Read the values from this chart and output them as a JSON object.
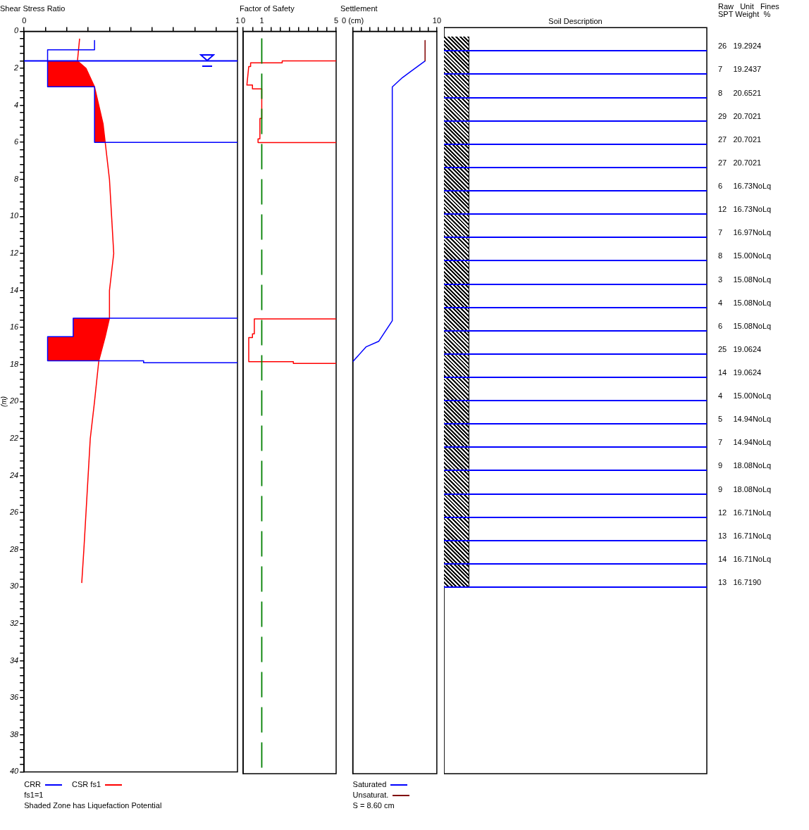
{
  "chart_data": [
    {
      "type": "line",
      "title": "Shear Stress Ratio",
      "ylabel": "(m)",
      "orientation": "horizontal",
      "legend": "bottom",
      "line_style": "solid",
      "marker": "none",
      "grid": false,
      "xlim": [
        0,
        1
      ],
      "xticks": [
        0,
        {
          "value": 0.1,
          "label": null
        },
        {
          "value": 0.2,
          "label": null
        },
        {
          "value": 0.3,
          "label": null
        },
        {
          "value": 0.4,
          "label": null
        },
        {
          "value": 0.5,
          "label": null
        },
        {
          "value": 0.6,
          "label": null
        },
        {
          "value": 0.7,
          "label": null
        },
        {
          "value": 0.8,
          "label": null
        },
        {
          "value": 0.9,
          "label": null
        },
        1
      ],
      "ylim": [
        40,
        0
      ],
      "yticks": [
        0,
        {
          "value": 0.4,
          "label": null
        },
        {
          "value": 0.8,
          "label": null
        },
        {
          "value": 1.2,
          "label": null
        },
        {
          "value": 1.6,
          "label": null
        },
        2,
        {
          "value": 2.4,
          "label": null
        },
        {
          "value": 2.8,
          "label": null
        },
        {
          "value": 3.2,
          "label": null
        },
        {
          "value": 3.6,
          "label": null
        },
        4,
        {
          "value": 4.4,
          "label": null
        },
        {
          "value": 4.8,
          "label": null
        },
        {
          "value": 5.2,
          "label": null
        },
        {
          "value": 5.6,
          "label": null
        },
        6,
        {
          "value": 6.4,
          "label": null
        },
        {
          "value": 6.8,
          "label": null
        },
        {
          "value": 7.2,
          "label": null
        },
        {
          "value": 7.6,
          "label": null
        },
        8,
        {
          "value": 8.4,
          "label": null
        },
        {
          "value": 8.8,
          "label": null
        },
        {
          "value": 9.2,
          "label": null
        },
        {
          "value": 9.6,
          "label": null
        },
        10,
        {
          "value": 10.4,
          "label": null
        },
        {
          "value": 10.8,
          "label": null
        },
        {
          "value": 11.2,
          "label": null
        },
        {
          "value": 11.6,
          "label": null
        },
        12,
        {
          "value": 12.4,
          "label": null
        },
        {
          "value": 12.8,
          "label": null
        },
        {
          "value": 13.2,
          "label": null
        },
        {
          "value": 13.6,
          "label": null
        },
        14,
        {
          "value": 14.4,
          "label": null
        },
        {
          "value": 14.8,
          "label": null
        },
        {
          "value": 15.2,
          "label": null
        },
        {
          "value": 15.6,
          "label": null
        },
        16,
        {
          "value": 16.4,
          "label": null
        },
        {
          "value": 16.8,
          "label": null
        },
        {
          "value": 17.2,
          "label": null
        },
        {
          "value": 17.6,
          "label": null
        },
        18,
        {
          "value": 18.4,
          "label": null
        },
        {
          "value": 18.8,
          "label": null
        },
        {
          "value": 19.2,
          "label": null
        },
        {
          "value": 19.6,
          "label": null
        },
        20,
        {
          "value": 20.4,
          "label": null
        },
        {
          "value": 20.8,
          "label": null
        },
        {
          "value": 21.2,
          "label": null
        },
        {
          "value": 21.6,
          "label": null
        },
        22,
        {
          "value": 22.4,
          "label": null
        },
        {
          "value": 22.8,
          "label": null
        },
        {
          "value": 23.2,
          "label": null
        },
        {
          "value": 23.6,
          "label": null
        },
        24,
        {
          "value": 24.4,
          "label": null
        },
        {
          "value": 24.8,
          "label": null
        },
        {
          "value": 25.2,
          "label": null
        },
        {
          "value": 25.6,
          "label": null
        },
        26,
        {
          "value": 26.4,
          "label": null
        },
        {
          "value": 26.8,
          "label": null
        },
        {
          "value": 27.2,
          "label": null
        },
        {
          "value": 27.6,
          "label": null
        },
        28,
        {
          "value": 28.4,
          "label": null
        },
        {
          "value": 28.8,
          "label": null
        },
        {
          "value": 29.2,
          "label": null
        },
        {
          "value": 29.6,
          "label": null
        },
        30,
        {
          "value": 30.4,
          "label": null
        },
        {
          "value": 30.8,
          "label": null
        },
        {
          "value": 31.2,
          "label": null
        },
        {
          "value": 31.6,
          "label": null
        },
        32,
        {
          "value": 32.4,
          "label": null
        },
        {
          "value": 32.8,
          "label": null
        },
        {
          "value": 33.2,
          "label": null
        },
        {
          "value": 33.6,
          "label": null
        },
        34,
        {
          "value": 34.4,
          "label": null
        },
        {
          "value": 34.8,
          "label": null
        },
        {
          "value": 35.2,
          "label": null
        },
        {
          "value": 35.6,
          "label": null
        },
        36,
        {
          "value": 36.4,
          "label": null
        },
        {
          "value": 36.8,
          "label": null
        },
        {
          "value": 37.2,
          "label": null
        },
        {
          "value": 37.6,
          "label": null
        },
        38,
        {
          "value": 38.4,
          "label": null
        },
        {
          "value": 38.8,
          "label": null
        },
        {
          "value": 39.2,
          "label": null
        },
        {
          "value": 39.6,
          "label": null
        },
        40
      ],
      "series": [
        {
          "name": "CRR",
          "color": "#0000ff",
          "x": [
            0.5,
            1.0,
            1.0,
            3.0,
            3.0,
            6.0,
            6.0,
            7.0,
            15.5,
            15.5,
            16.5,
            16.5,
            17.8,
            17.8,
            17.9,
            17.9
          ],
          "values": [
            0.33,
            0.33,
            0.11,
            0.11,
            0.33,
            0.33,
            1,
            null,
            1,
            0.23,
            0.23,
            0.11,
            0.11,
            0.56,
            0.56,
            1
          ]
        },
        {
          "name": "CSR fs1",
          "color": "#ff0000",
          "x": [
            0.4,
            1.6,
            2,
            3,
            3,
            4,
            5,
            6,
            8,
            10,
            12,
            14,
            15.5,
            16.5,
            16.5,
            17.8,
            20,
            22,
            24,
            26,
            28,
            29.8
          ],
          "values": [
            0.26,
            0.25,
            0.29,
            0.33,
            0.33,
            0.35,
            0.37,
            0.38,
            0.4,
            0.41,
            0.42,
            0.4,
            0.4,
            0.38,
            0.38,
            0.35,
            0.33,
            0.31,
            0.3,
            0.29,
            0.28,
            0.27
          ],
          "lower": [
            null,
            0.11,
            0.11,
            0.11,
            0.33,
            0.33,
            0.33,
            0.33,
            null,
            null,
            null,
            null,
            0.23,
            0.23,
            0.11,
            0.11,
            null,
            null,
            null,
            null,
            null,
            null
          ],
          "upper": [
            null,
            0.25,
            0.29,
            0.33,
            0.33,
            0.35,
            0.37,
            0.38,
            null,
            null,
            null,
            null,
            0.4,
            0.38,
            0.38,
            0.35,
            null,
            null,
            null,
            null,
            null,
            null
          ]
        }
      ],
      "ref_lines": [
        {
          "axis": "y",
          "value": 1.6,
          "color": "#0000ff"
        }
      ],
      "annotations": [
        "fs1=1",
        "Shaded Zone has Liquefaction Potential"
      ]
    },
    {
      "type": "line",
      "title": "Factor of Safety",
      "orientation": "horizontal",
      "marker": "none",
      "grid": false,
      "tick_labels": "x",
      "xlim": [
        0,
        5
      ],
      "xticks": [
        0,
        {
          "value": 0.5,
          "label": null
        },
        1,
        {
          "value": 1.5,
          "label": null
        },
        {
          "value": 2,
          "label": null
        },
        {
          "value": 2.5,
          "label": null
        },
        {
          "value": 3,
          "label": null
        },
        {
          "value": 3.5,
          "label": null
        },
        {
          "value": 4,
          "label": null
        },
        {
          "value": 4.5,
          "label": null
        },
        5
      ],
      "ylim": [
        40,
        0
      ],
      "series": [
        {
          "color": "#ff0000",
          "x": [
            1.6,
            1.6,
            1.7,
            1.7,
            1.9,
            1.9,
            2.9,
            2.9,
            3.1,
            3.1,
            4.7,
            4.7,
            5.8,
            5.8,
            6.0,
            6.0,
            10,
            15.5,
            15.5,
            16.3,
            16.3,
            16.5,
            16.5,
            17.8,
            17.8,
            17.9,
            17.9
          ],
          "values": [
            5,
            2.1,
            2.1,
            0.4,
            0.4,
            0.3,
            0.2,
            0.5,
            0.5,
            1.0,
            1.0,
            0.9,
            0.9,
            0.8,
            0.8,
            5,
            null,
            5,
            0.6,
            0.6,
            0.5,
            0.5,
            0.3,
            0.3,
            2.7,
            2.7,
            5
          ]
        }
      ],
      "ref_lines": [
        {
          "axis": "x",
          "value": 1,
          "color": "#008000",
          "line_style": "dashed"
        }
      ]
    },
    {
      "type": "line",
      "title": "Settlement",
      "orientation": "horizontal",
      "legend": "bottom",
      "marker": "none",
      "grid": false,
      "tick_labels": "x",
      "xlim": [
        0,
        10
      ],
      "xticks": [
        {
          "value": 0,
          "label": "0 (cm)"
        },
        {
          "value": 1,
          "label": null
        },
        {
          "value": 2,
          "label": null
        },
        {
          "value": 3,
          "label": null
        },
        {
          "value": 4,
          "label": null
        },
        {
          "value": 5,
          "label": null
        },
        {
          "value": 6,
          "label": null
        },
        {
          "value": 7,
          "label": null
        },
        {
          "value": 8,
          "label": null
        },
        {
          "value": 9,
          "label": null
        },
        10
      ],
      "ylim": [
        40,
        0
      ],
      "series": [
        {
          "name": "Saturated",
          "color": "#0000ff",
          "x": [
            1.6,
            2.2,
            2.5,
            3.0,
            15.6,
            16.7,
            17.0,
            17.8
          ],
          "values": [
            8.6,
            6.8,
            5.9,
            4.7,
            4.7,
            3.1,
            1.6,
            0
          ]
        },
        {
          "name": "Unsaturat.",
          "color": "#800000",
          "x": [
            0.5,
            1.6
          ],
          "values": [
            8.6,
            8.6
          ]
        }
      ],
      "annotations": [
        "S = 8.60 cm"
      ]
    },
    {
      "type": "other",
      "title": "Soil Description",
      "annotations": [
        "Raw   Unit   Fines",
        "SPT Weight  %",
        "26   19.2924",
        "7     19.2437",
        "8     20.6521",
        "29   20.7021",
        "27   20.7021",
        "27   20.7021",
        "6     16.73NoLq",
        "12   16.73NoLq",
        "7     16.97NoLq",
        "8     15.00NoLq",
        "3     15.08NoLq",
        "4     15.08NoLq",
        "6     15.08NoLq",
        "25   19.0624",
        "14   19.0624",
        "4     15.00NoLq",
        "5     14.94NoLq",
        "7     14.94NoLq",
        "9     18.08NoLq",
        "9     18.08NoLq",
        "12   16.71NoLq",
        "13   16.71NoLq",
        "14   16.71NoLq",
        "13   16.7190"
      ]
    }
  ]
}
